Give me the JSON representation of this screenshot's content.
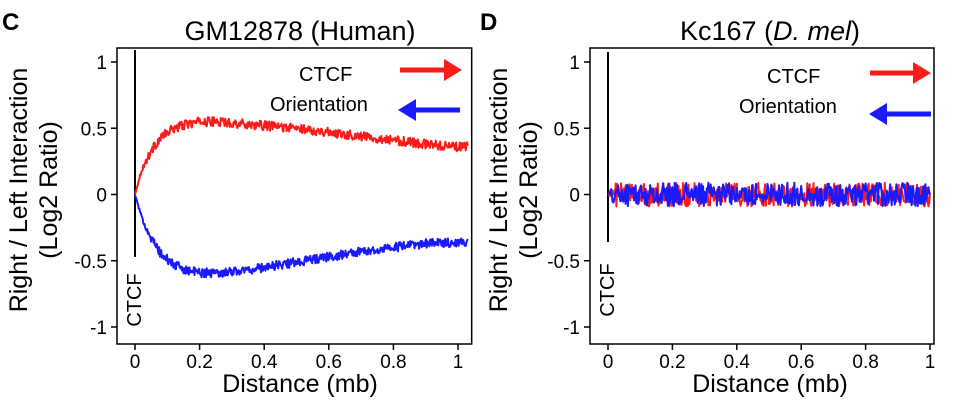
{
  "chart_data": [
    {
      "panel": "C",
      "type": "line",
      "title": "GM12878 (Human)",
      "xlabel": "Distance (mb)",
      "ylabel": [
        "Right / Left Interaction",
        "(Log2 Ratio)"
      ],
      "xlim": [
        0,
        1.0
      ],
      "ylim": [
        -1,
        1
      ],
      "xticks": [
        0,
        0.2,
        0.4,
        0.6,
        0.8,
        1
      ],
      "xtick_labels": [
        "0",
        "0.2",
        "0.4",
        "0.6",
        "0.8",
        "1"
      ],
      "yticks": [
        1,
        0.5,
        0,
        -0.5,
        -1
      ],
      "ytick_labels": [
        "1",
        "0.5",
        "0",
        "-0.5",
        "-1"
      ],
      "vline": {
        "x": 0,
        "label": "CTCF"
      },
      "legend": [
        {
          "label": "CTCF",
          "color": "#ff1a1a",
          "arrow": "right"
        },
        {
          "label": "Orientation",
          "color": "#1a1aff",
          "arrow": "left"
        }
      ],
      "series": [
        {
          "color": "#ff1a1a",
          "x": [
            0,
            0.02,
            0.05,
            0.08,
            0.12,
            0.16,
            0.2,
            0.25,
            0.3,
            0.35,
            0.4,
            0.5,
            0.6,
            0.7,
            0.8,
            0.9,
            1.0
          ],
          "y": [
            0,
            0.18,
            0.33,
            0.43,
            0.5,
            0.53,
            0.55,
            0.55,
            0.54,
            0.53,
            0.52,
            0.5,
            0.47,
            0.44,
            0.41,
            0.38,
            0.36
          ]
        },
        {
          "color": "#1a1aff",
          "x": [
            0,
            0.02,
            0.05,
            0.08,
            0.12,
            0.16,
            0.2,
            0.25,
            0.3,
            0.35,
            0.4,
            0.5,
            0.6,
            0.7,
            0.8,
            0.9,
            1.0
          ],
          "y": [
            0,
            -0.17,
            -0.33,
            -0.45,
            -0.53,
            -0.57,
            -0.59,
            -0.59,
            -0.58,
            -0.57,
            -0.55,
            -0.51,
            -0.47,
            -0.43,
            -0.4,
            -0.37,
            -0.36
          ]
        }
      ],
      "noise": 0.035,
      "grid": false
    },
    {
      "panel": "D",
      "type": "line",
      "title": "Kc167 (",
      "title_italic": "D. mel",
      "title_end": ")",
      "xlabel": "Distance (mb)",
      "ylabel": [
        "Right / Left Interaction",
        "(Log2 Ratio)"
      ],
      "xlim": [
        0,
        1.0
      ],
      "ylim": [
        -1,
        1
      ],
      "xticks": [
        0,
        0.2,
        0.4,
        0.6,
        0.8,
        1
      ],
      "xtick_labels": [
        "0",
        "0.2",
        "0.4",
        "0.6",
        "0.8",
        "1"
      ],
      "yticks": [
        1,
        0.5,
        0,
        -0.5,
        -1
      ],
      "ytick_labels": [
        "1",
        "0.5",
        "0",
        "-0.5",
        "-1"
      ],
      "vline": {
        "x": 0,
        "label": "CTCF"
      },
      "legend": [
        {
          "label": "CTCF",
          "color": "#ff1a1a",
          "arrow": "right"
        },
        {
          "label": "Orientation",
          "color": "#1a1aff",
          "arrow": "left"
        }
      ],
      "series": [
        {
          "color": "#ff1a1a",
          "x": [
            0,
            0.2,
            0.4,
            0.6,
            0.8,
            1.0
          ],
          "y": [
            0,
            0,
            0,
            0,
            0,
            0
          ]
        },
        {
          "color": "#1a1aff",
          "x": [
            0,
            0.2,
            0.4,
            0.6,
            0.8,
            1.0
          ],
          "y": [
            0,
            0,
            0,
            0,
            0,
            0
          ]
        }
      ],
      "noise": 0.09,
      "grid": false
    }
  ]
}
